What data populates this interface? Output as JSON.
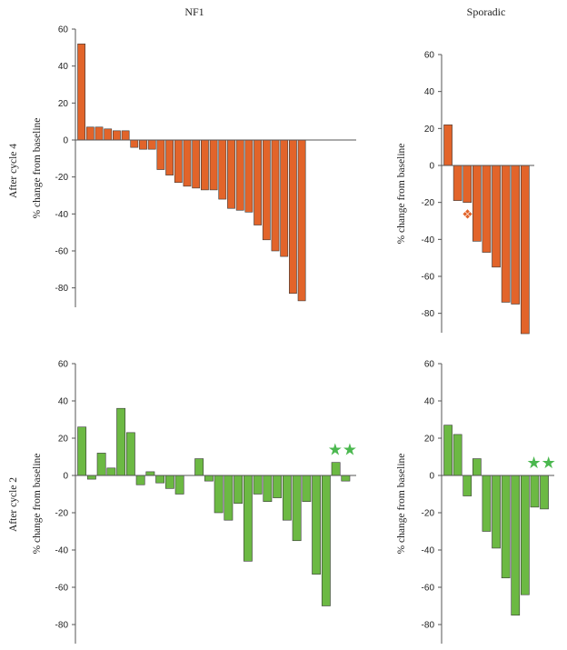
{
  "column_titles": [
    "NF1",
    "Sporadic"
  ],
  "row_titles": [
    "After cycle 4",
    "After cycle 2"
  ],
  "colors": {
    "cycle4_bar": "#e2642a",
    "cycle2_bar": "#6cb943",
    "bar_stroke": "#3a3a3a",
    "axis": "#555555",
    "cycle4_marker": "#e2642a",
    "cycle2_marker": "#4bb84f"
  },
  "chart_data": [
    {
      "type": "bar",
      "panel": "NF1 / After cycle 4",
      "ylabel": "% change from baseline",
      "ylim": [
        -90,
        60
      ],
      "yticks": [
        60,
        40,
        20,
        0,
        -20,
        -40,
        -60,
        -80
      ],
      "values": [
        52,
        7,
        7,
        6,
        5,
        5,
        -4,
        -5,
        -5,
        -16,
        -19,
        -23,
        -25,
        -26,
        -27,
        -27,
        -32,
        -37,
        -38,
        -39,
        -46,
        -54,
        -60,
        -63,
        -83,
        -87
      ],
      "markers": []
    },
    {
      "type": "bar",
      "panel": "Sporadic / After cycle 4",
      "ylabel": "% change from baseline",
      "ylim": [
        -90,
        60
      ],
      "yticks": [
        60,
        40,
        20,
        0,
        -20,
        -40,
        -60,
        -80
      ],
      "values": [
        22,
        -19,
        -20,
        -41,
        -47,
        -55,
        -74,
        -75,
        -91
      ],
      "markers": [
        {
          "bar_index": 2,
          "symbol": "❖"
        }
      ]
    },
    {
      "type": "bar",
      "panel": "NF1 / After cycle 2",
      "ylabel": "% change from baseline",
      "ylim": [
        -90,
        60
      ],
      "yticks": [
        60,
        40,
        20,
        0,
        -20,
        -40,
        -60,
        -80
      ],
      "values": [
        26,
        -2,
        12,
        4,
        36,
        23,
        -5,
        2,
        -4,
        -7,
        -10,
        null,
        9,
        -3,
        -20,
        -24,
        -15,
        -46,
        -10,
        -14,
        -12,
        -24,
        -35,
        -14,
        -53,
        -70,
        7,
        -3
      ],
      "markers": [
        {
          "bar_index": 26,
          "symbol": "★★"
        }
      ]
    },
    {
      "type": "bar",
      "panel": "Sporadic / After cycle 2",
      "ylabel": "% change from baseline",
      "ylim": [
        -90,
        60
      ],
      "yticks": [
        60,
        40,
        20,
        0,
        -20,
        -40,
        -60,
        -80
      ],
      "values": [
        27,
        22,
        -11,
        9,
        -30,
        -39,
        -55,
        -75,
        -64,
        -17,
        -18
      ],
      "markers": [
        {
          "bar_index": 9,
          "symbol": "★★"
        }
      ]
    }
  ]
}
